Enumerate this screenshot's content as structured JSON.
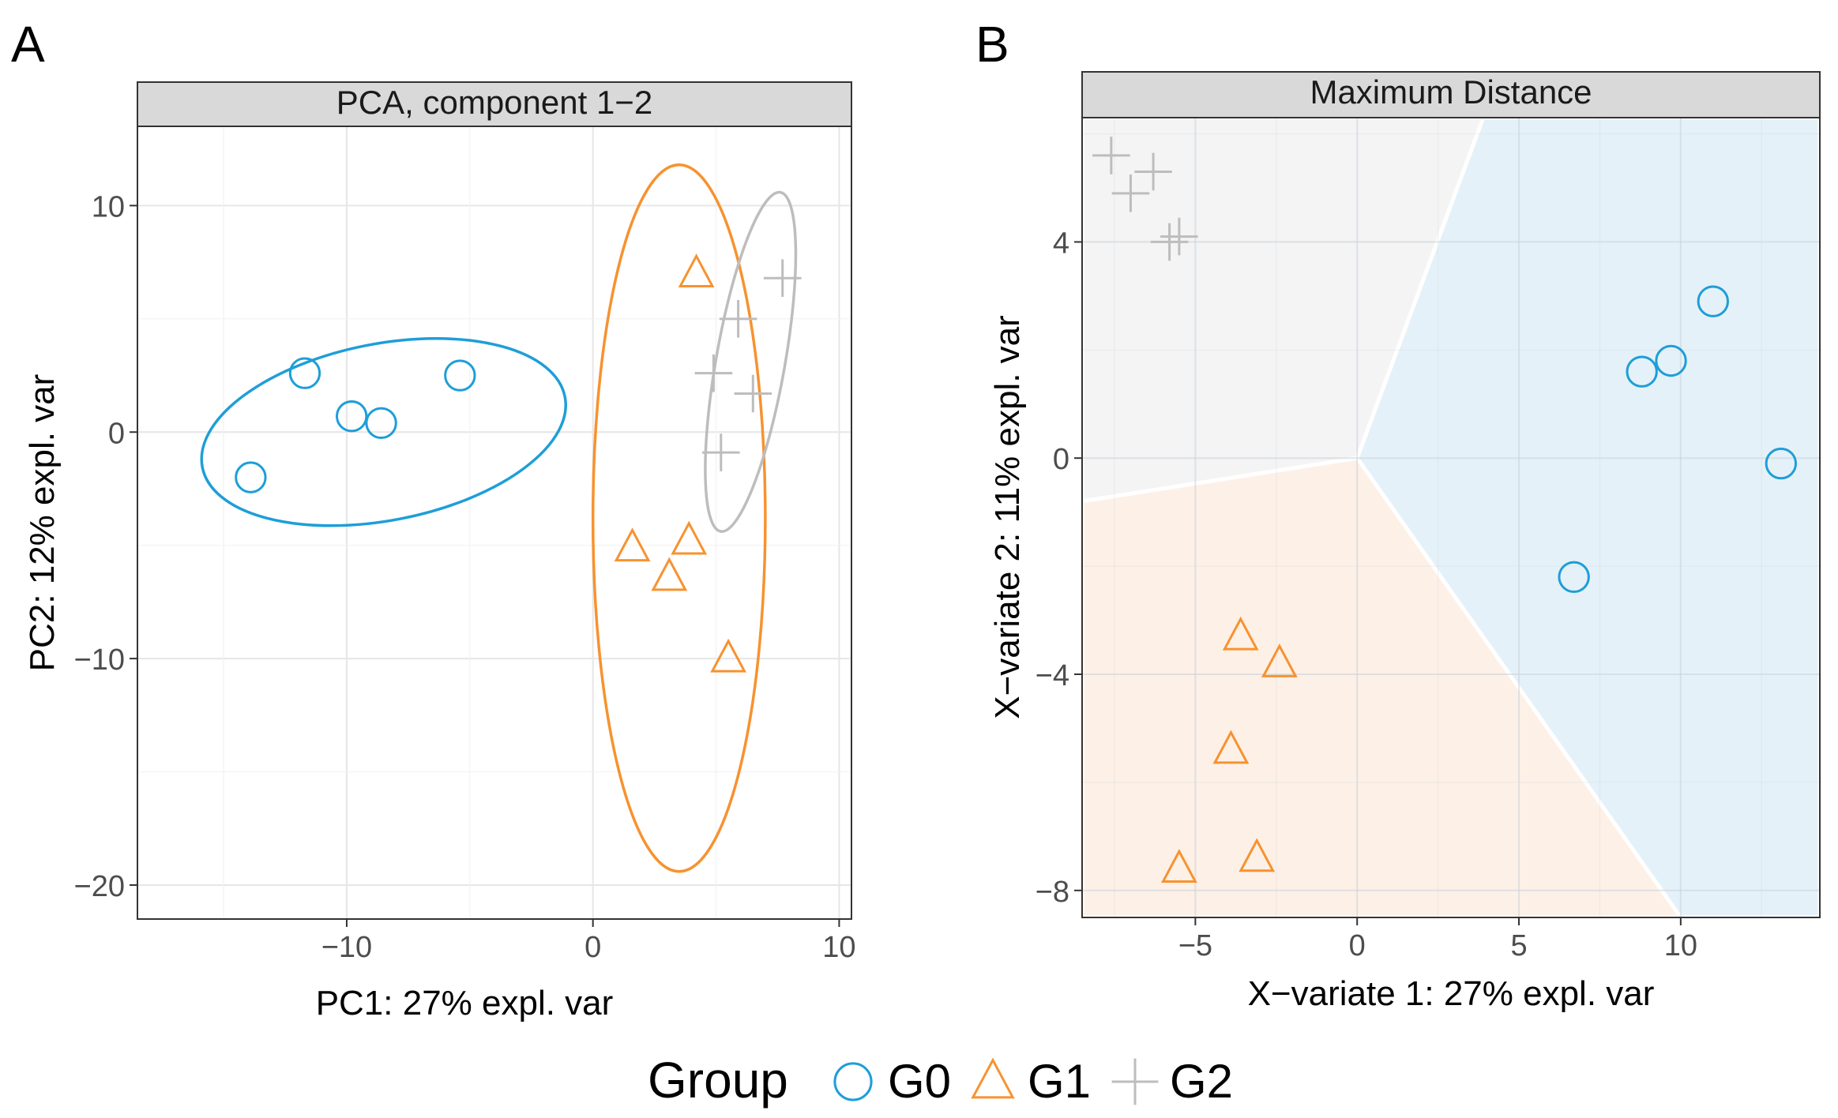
{
  "colors": {
    "G0": "#1E9ED8",
    "G1": "#F7922F",
    "G2": "#BDBDBD",
    "region_G0": "#E5F1F8",
    "region_G1": "#FDF0E6",
    "region_G2": "#F4F4F4",
    "strip": "#D9D9D9",
    "grid": "#EBEBEB"
  },
  "legend": {
    "title": "Group",
    "items": [
      {
        "label": "G0",
        "shape": "circle"
      },
      {
        "label": "G1",
        "shape": "triangle"
      },
      {
        "label": "G2",
        "shape": "plus"
      }
    ]
  },
  "chart_data": [
    {
      "panel": "A",
      "type": "scatter",
      "title": "PCA, component 1−2",
      "xlabel": "PC1: 27% expl. var",
      "ylabel": "PC2: 12% expl. var",
      "xlim": [
        -18.5,
        10.5
      ],
      "ylim": [
        -21.5,
        13.5
      ],
      "xticks": [
        -10,
        0,
        10
      ],
      "xtick_labels": [
        "−10",
        "0",
        "10"
      ],
      "yticks": [
        10,
        0,
        -10,
        -20
      ],
      "ytick_labels": [
        "10",
        "0",
        "−10",
        "−20"
      ],
      "grid": true,
      "series": [
        {
          "name": "G0",
          "shape": "circle",
          "points": [
            [
              -11.7,
              2.6
            ],
            [
              -9.8,
              0.7
            ],
            [
              -8.6,
              0.4
            ],
            [
              -5.4,
              2.5
            ],
            [
              -13.9,
              -2.0
            ]
          ]
        },
        {
          "name": "G1",
          "shape": "triangle",
          "points": [
            [
              4.2,
              7.0
            ],
            [
              1.6,
              -5.1
            ],
            [
              3.1,
              -6.4
            ],
            [
              3.9,
              -4.8
            ],
            [
              5.5,
              -10.0
            ]
          ]
        },
        {
          "name": "G2",
          "shape": "plus",
          "points": [
            [
              7.7,
              6.8
            ],
            [
              5.9,
              5.0
            ],
            [
              4.9,
              2.6
            ],
            [
              6.5,
              1.7
            ],
            [
              5.2,
              -0.9
            ]
          ]
        }
      ],
      "ellipses": [
        {
          "group": "G0",
          "cx": -8.5,
          "cy": 0.0,
          "rx": 7.5,
          "ry": 3.9,
          "angle": -11
        },
        {
          "group": "G1",
          "cx": 3.5,
          "cy": -3.8,
          "rx": 3.5,
          "ry": 15.6,
          "angle": 0
        },
        {
          "group": "G2",
          "cx": 6.4,
          "cy": 3.1,
          "rx": 1.4,
          "ry": 7.6,
          "angle": 10
        }
      ]
    },
    {
      "panel": "B",
      "type": "scatter",
      "title": "Maximum Distance",
      "xlabel": "X−variate 1: 27% expl. var",
      "ylabel": "X−variate 2: 11% expl. var",
      "xlim": [
        -8.5,
        14.3
      ],
      "ylim": [
        -8.5,
        6.3
      ],
      "xticks": [
        -5,
        0,
        5,
        10
      ],
      "xtick_labels": [
        "−5",
        "0",
        "5",
        "10"
      ],
      "yticks": [
        4,
        0,
        -4,
        -8
      ],
      "ytick_labels": [
        "4",
        "0",
        "−4",
        "−8"
      ],
      "grid": true,
      "regions": [
        {
          "group": "G2",
          "polygon": [
            [
              -8.5,
              6.3
            ],
            [
              3.9,
              6.3
            ],
            [
              0.0,
              0.0
            ],
            [
              -8.5,
              -0.8
            ]
          ]
        },
        {
          "group": "G0",
          "polygon": [
            [
              3.9,
              6.3
            ],
            [
              14.3,
              6.3
            ],
            [
              14.3,
              -8.5
            ],
            [
              10.0,
              -8.5
            ],
            [
              0.0,
              0.0
            ]
          ]
        },
        {
          "group": "G1",
          "polygon": [
            [
              -8.5,
              -0.8
            ],
            [
              0.0,
              0.0
            ],
            [
              10.0,
              -8.5
            ],
            [
              -8.5,
              -8.5
            ]
          ]
        }
      ],
      "series": [
        {
          "name": "G0",
          "shape": "circle",
          "points": [
            [
              11.0,
              2.9
            ],
            [
              9.7,
              1.8
            ],
            [
              8.8,
              1.6
            ],
            [
              13.1,
              -0.1
            ],
            [
              6.7,
              -2.2
            ]
          ]
        },
        {
          "name": "G1",
          "shape": "triangle",
          "points": [
            [
              -3.6,
              -3.3
            ],
            [
              -2.4,
              -3.8
            ],
            [
              -3.9,
              -5.4
            ],
            [
              -3.1,
              -7.4
            ],
            [
              -5.5,
              -7.6
            ]
          ]
        },
        {
          "name": "G2",
          "shape": "plus",
          "points": [
            [
              -7.6,
              5.6
            ],
            [
              -7.0,
              4.9
            ],
            [
              -6.3,
              5.3
            ],
            [
              -5.8,
              4.0
            ],
            [
              -5.5,
              4.1
            ]
          ]
        }
      ]
    }
  ]
}
